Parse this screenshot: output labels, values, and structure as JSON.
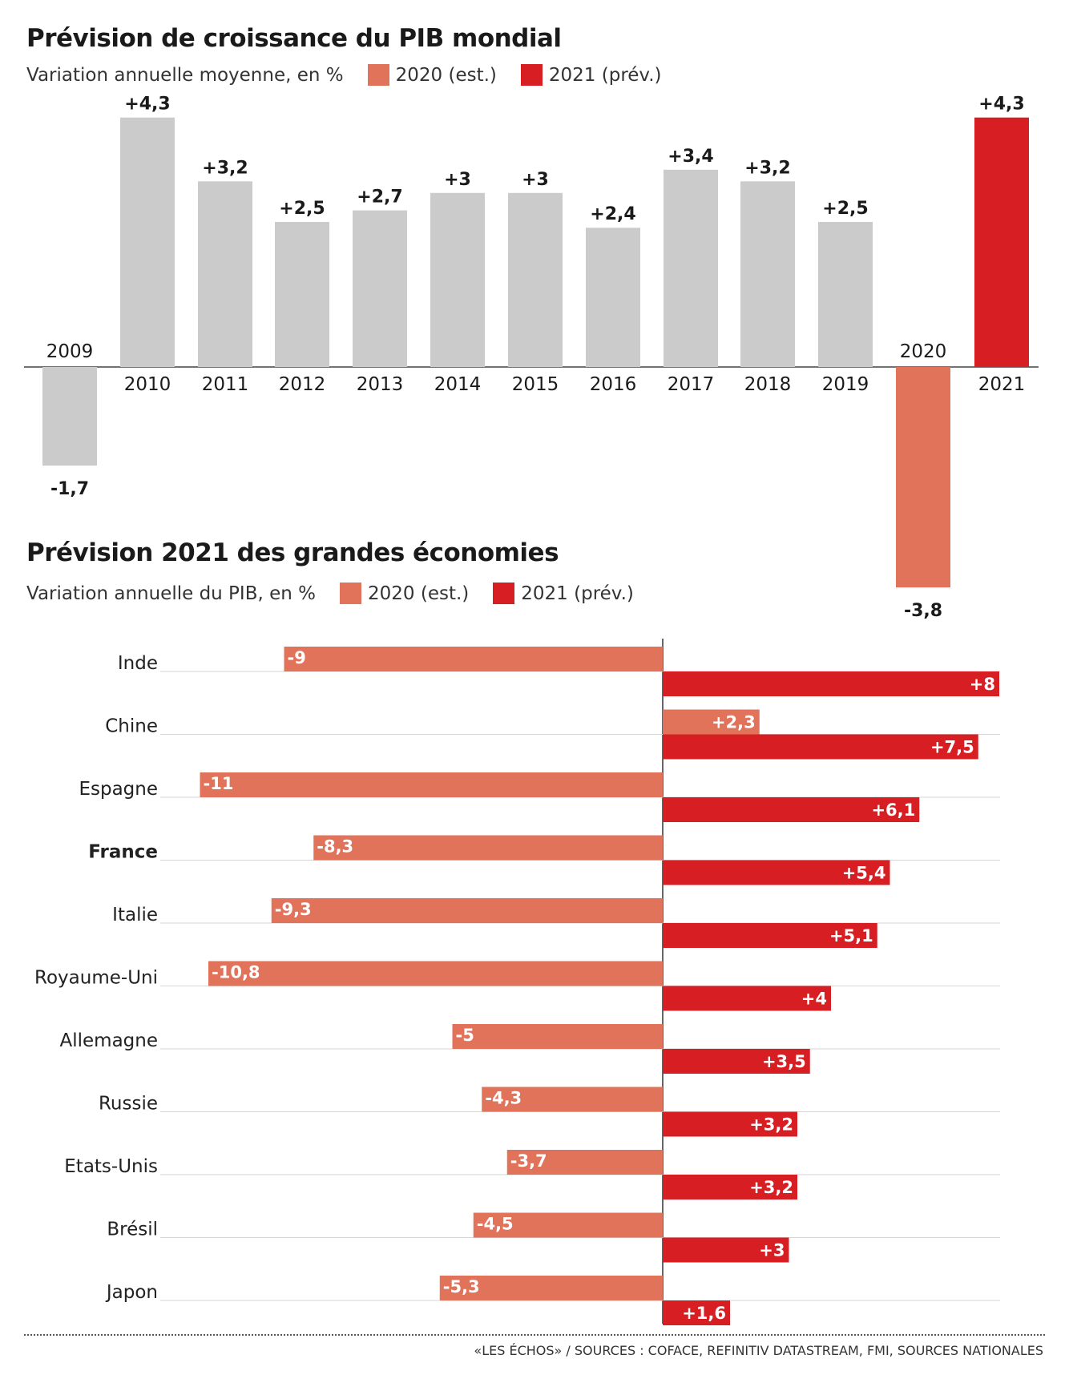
{
  "charts_text": {
    "chart1": {
      "title": "Prévision de croissance du PIB mondial",
      "subtitle": "Variation annuelle moyenne, en %",
      "legend_2020": "2020 (est.)",
      "legend_2021": "2021 (prév.)"
    },
    "chart2": {
      "title": "Prévision 2021 des grandes économies",
      "subtitle": "Variation annuelle du PIB, en %",
      "legend_2020": "2020 (est.)",
      "legend_2021": "2021 (prév.)"
    }
  },
  "colors": {
    "grey": "#cbcbcb",
    "est_2020": "#e2735b",
    "prev_2021": "#d71f23"
  },
  "footer": {
    "source": "«LES ÉCHOS» / SOURCES : COFACE, REFINITIV DATASTREAM, FMI, SOURCES NATIONALES"
  },
  "chart_data": [
    {
      "type": "bar",
      "title": "Prévision de croissance du PIB mondial",
      "subtitle": "Variation annuelle moyenne, en %",
      "categories": [
        "2009",
        "2010",
        "2011",
        "2012",
        "2013",
        "2014",
        "2015",
        "2016",
        "2017",
        "2018",
        "2019",
        "2020",
        "2021"
      ],
      "values": [
        -1.7,
        4.3,
        3.2,
        2.5,
        2.7,
        3,
        3,
        2.4,
        3.4,
        3.2,
        2.5,
        -3.8,
        4.3
      ],
      "labels": [
        "-1,7",
        "+4,3",
        "+3,2",
        "+2,5",
        "+2,7",
        "+3",
        "+3",
        "+2,4",
        "+3,4",
        "+3,2",
        "+2,5",
        "-3,8",
        "+4,3"
      ],
      "legend": [
        "2020 (est.)",
        "2021 (prév.)"
      ]
    },
    {
      "type": "bar",
      "orientation": "horizontal",
      "title": "Prévision 2021 des grandes économies",
      "subtitle": "Variation annuelle du PIB, en %",
      "categories": [
        "Inde",
        "Chine",
        "Espagne",
        "France",
        "Italie",
        "Royaume-Uni",
        "Allemagne",
        "Russie",
        "Etats-Unis",
        "Brésil",
        "Japon"
      ],
      "highlight": "France",
      "series": [
        {
          "name": "2020 (est.)",
          "values": [
            -9,
            2.3,
            -11,
            -8.3,
            -9.3,
            -10.8,
            -5,
            -4.3,
            -3.7,
            -4.5,
            -5.3
          ],
          "labels": [
            "-9",
            "+2,3",
            "-11",
            "-8,3",
            "-9,3",
            "-10,8",
            "-5",
            "-4,3",
            "-3,7",
            "-4,5",
            "-5,3"
          ]
        },
        {
          "name": "2021 (prév.)",
          "values": [
            8,
            7.5,
            6.1,
            5.4,
            5.1,
            4,
            3.5,
            3.2,
            3.2,
            3,
            1.6
          ],
          "labels": [
            "+8",
            "+7,5",
            "+6,1",
            "+5,4",
            "+5,1",
            "+4",
            "+3,5",
            "+3,2",
            "+3,2",
            "+3",
            "+1,6"
          ]
        }
      ]
    }
  ]
}
